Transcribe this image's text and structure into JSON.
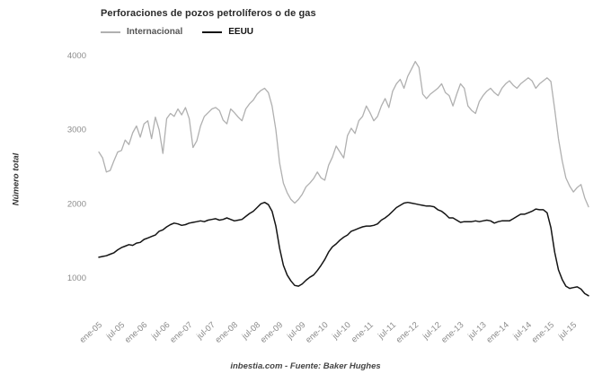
{
  "chart_data": {
    "type": "line",
    "title": "Perforaciones de pozos petrolíferos o de gas",
    "ylabel": "Número total",
    "caption": "inbestia.com - Fuente: Baker Hughes",
    "grid": false,
    "legend_position": "top-left",
    "ylim": [
      600,
      4100
    ],
    "yticks": [
      1000,
      2000,
      3000,
      4000
    ],
    "x_tick_labels": [
      "ene-05",
      "jul-05",
      "ene-06",
      "jul-06",
      "ene-07",
      "jul-07",
      "ene-08",
      "jul-08",
      "ene-09",
      "jul-09",
      "ene-10",
      "jul-10",
      "ene-11",
      "jul-11",
      "ene-12",
      "jul-12",
      "ene-13",
      "jul-13",
      "ene-14",
      "jul-14",
      "ene-15",
      "jul-15"
    ],
    "x_frequency": "monthly",
    "series": [
      {
        "id": "internacional",
        "name": "Internacional",
        "color": "#b0b0b0",
        "width": 1.3,
        "values": [
          2700,
          2620,
          2430,
          2450,
          2580,
          2700,
          2720,
          2860,
          2800,
          2960,
          3050,
          2900,
          3080,
          3120,
          2880,
          3170,
          3000,
          2680,
          3150,
          3220,
          3180,
          3280,
          3200,
          3300,
          3150,
          2760,
          2850,
          3050,
          3180,
          3230,
          3280,
          3300,
          3260,
          3130,
          3080,
          3280,
          3230,
          3170,
          3120,
          3280,
          3350,
          3400,
          3480,
          3530,
          3560,
          3500,
          3320,
          3000,
          2550,
          2280,
          2150,
          2060,
          2010,
          2060,
          2130,
          2230,
          2280,
          2340,
          2430,
          2350,
          2320,
          2520,
          2630,
          2780,
          2700,
          2620,
          2920,
          3020,
          2950,
          3120,
          3180,
          3320,
          3230,
          3120,
          3180,
          3320,
          3420,
          3300,
          3520,
          3620,
          3680,
          3560,
          3720,
          3820,
          3920,
          3840,
          3480,
          3420,
          3480,
          3520,
          3560,
          3620,
          3500,
          3460,
          3320,
          3480,
          3620,
          3560,
          3320,
          3260,
          3220,
          3380,
          3460,
          3520,
          3560,
          3500,
          3460,
          3560,
          3620,
          3660,
          3600,
          3560,
          3620,
          3660,
          3700,
          3660,
          3560,
          3620,
          3660,
          3700,
          3650,
          3280,
          2880,
          2580,
          2350,
          2240,
          2160,
          2220,
          2260,
          2080,
          1960
        ]
      },
      {
        "id": "eeuu",
        "name": "EEUU",
        "color": "#141414",
        "width": 1.5,
        "values": [
          1280,
          1290,
          1300,
          1320,
          1340,
          1380,
          1410,
          1430,
          1450,
          1440,
          1470,
          1480,
          1520,
          1540,
          1560,
          1580,
          1630,
          1650,
          1690,
          1720,
          1740,
          1730,
          1710,
          1720,
          1740,
          1750,
          1760,
          1770,
          1760,
          1780,
          1790,
          1800,
          1780,
          1790,
          1810,
          1790,
          1770,
          1780,
          1790,
          1830,
          1870,
          1900,
          1950,
          2000,
          2020,
          1990,
          1900,
          1700,
          1400,
          1170,
          1040,
          960,
          900,
          890,
          920,
          970,
          1010,
          1040,
          1100,
          1170,
          1250,
          1350,
          1420,
          1460,
          1510,
          1550,
          1580,
          1630,
          1650,
          1670,
          1690,
          1700,
          1700,
          1710,
          1730,
          1780,
          1810,
          1850,
          1900,
          1950,
          1980,
          2010,
          2020,
          2010,
          2000,
          1990,
          1980,
          1970,
          1970,
          1960,
          1920,
          1900,
          1860,
          1810,
          1810,
          1780,
          1750,
          1760,
          1760,
          1760,
          1770,
          1760,
          1770,
          1780,
          1770,
          1740,
          1760,
          1770,
          1770,
          1770,
          1800,
          1830,
          1860,
          1860,
          1880,
          1900,
          1930,
          1920,
          1920,
          1880,
          1680,
          1350,
          1110,
          980,
          890,
          860,
          870,
          880,
          850,
          790,
          760
        ]
      }
    ]
  }
}
